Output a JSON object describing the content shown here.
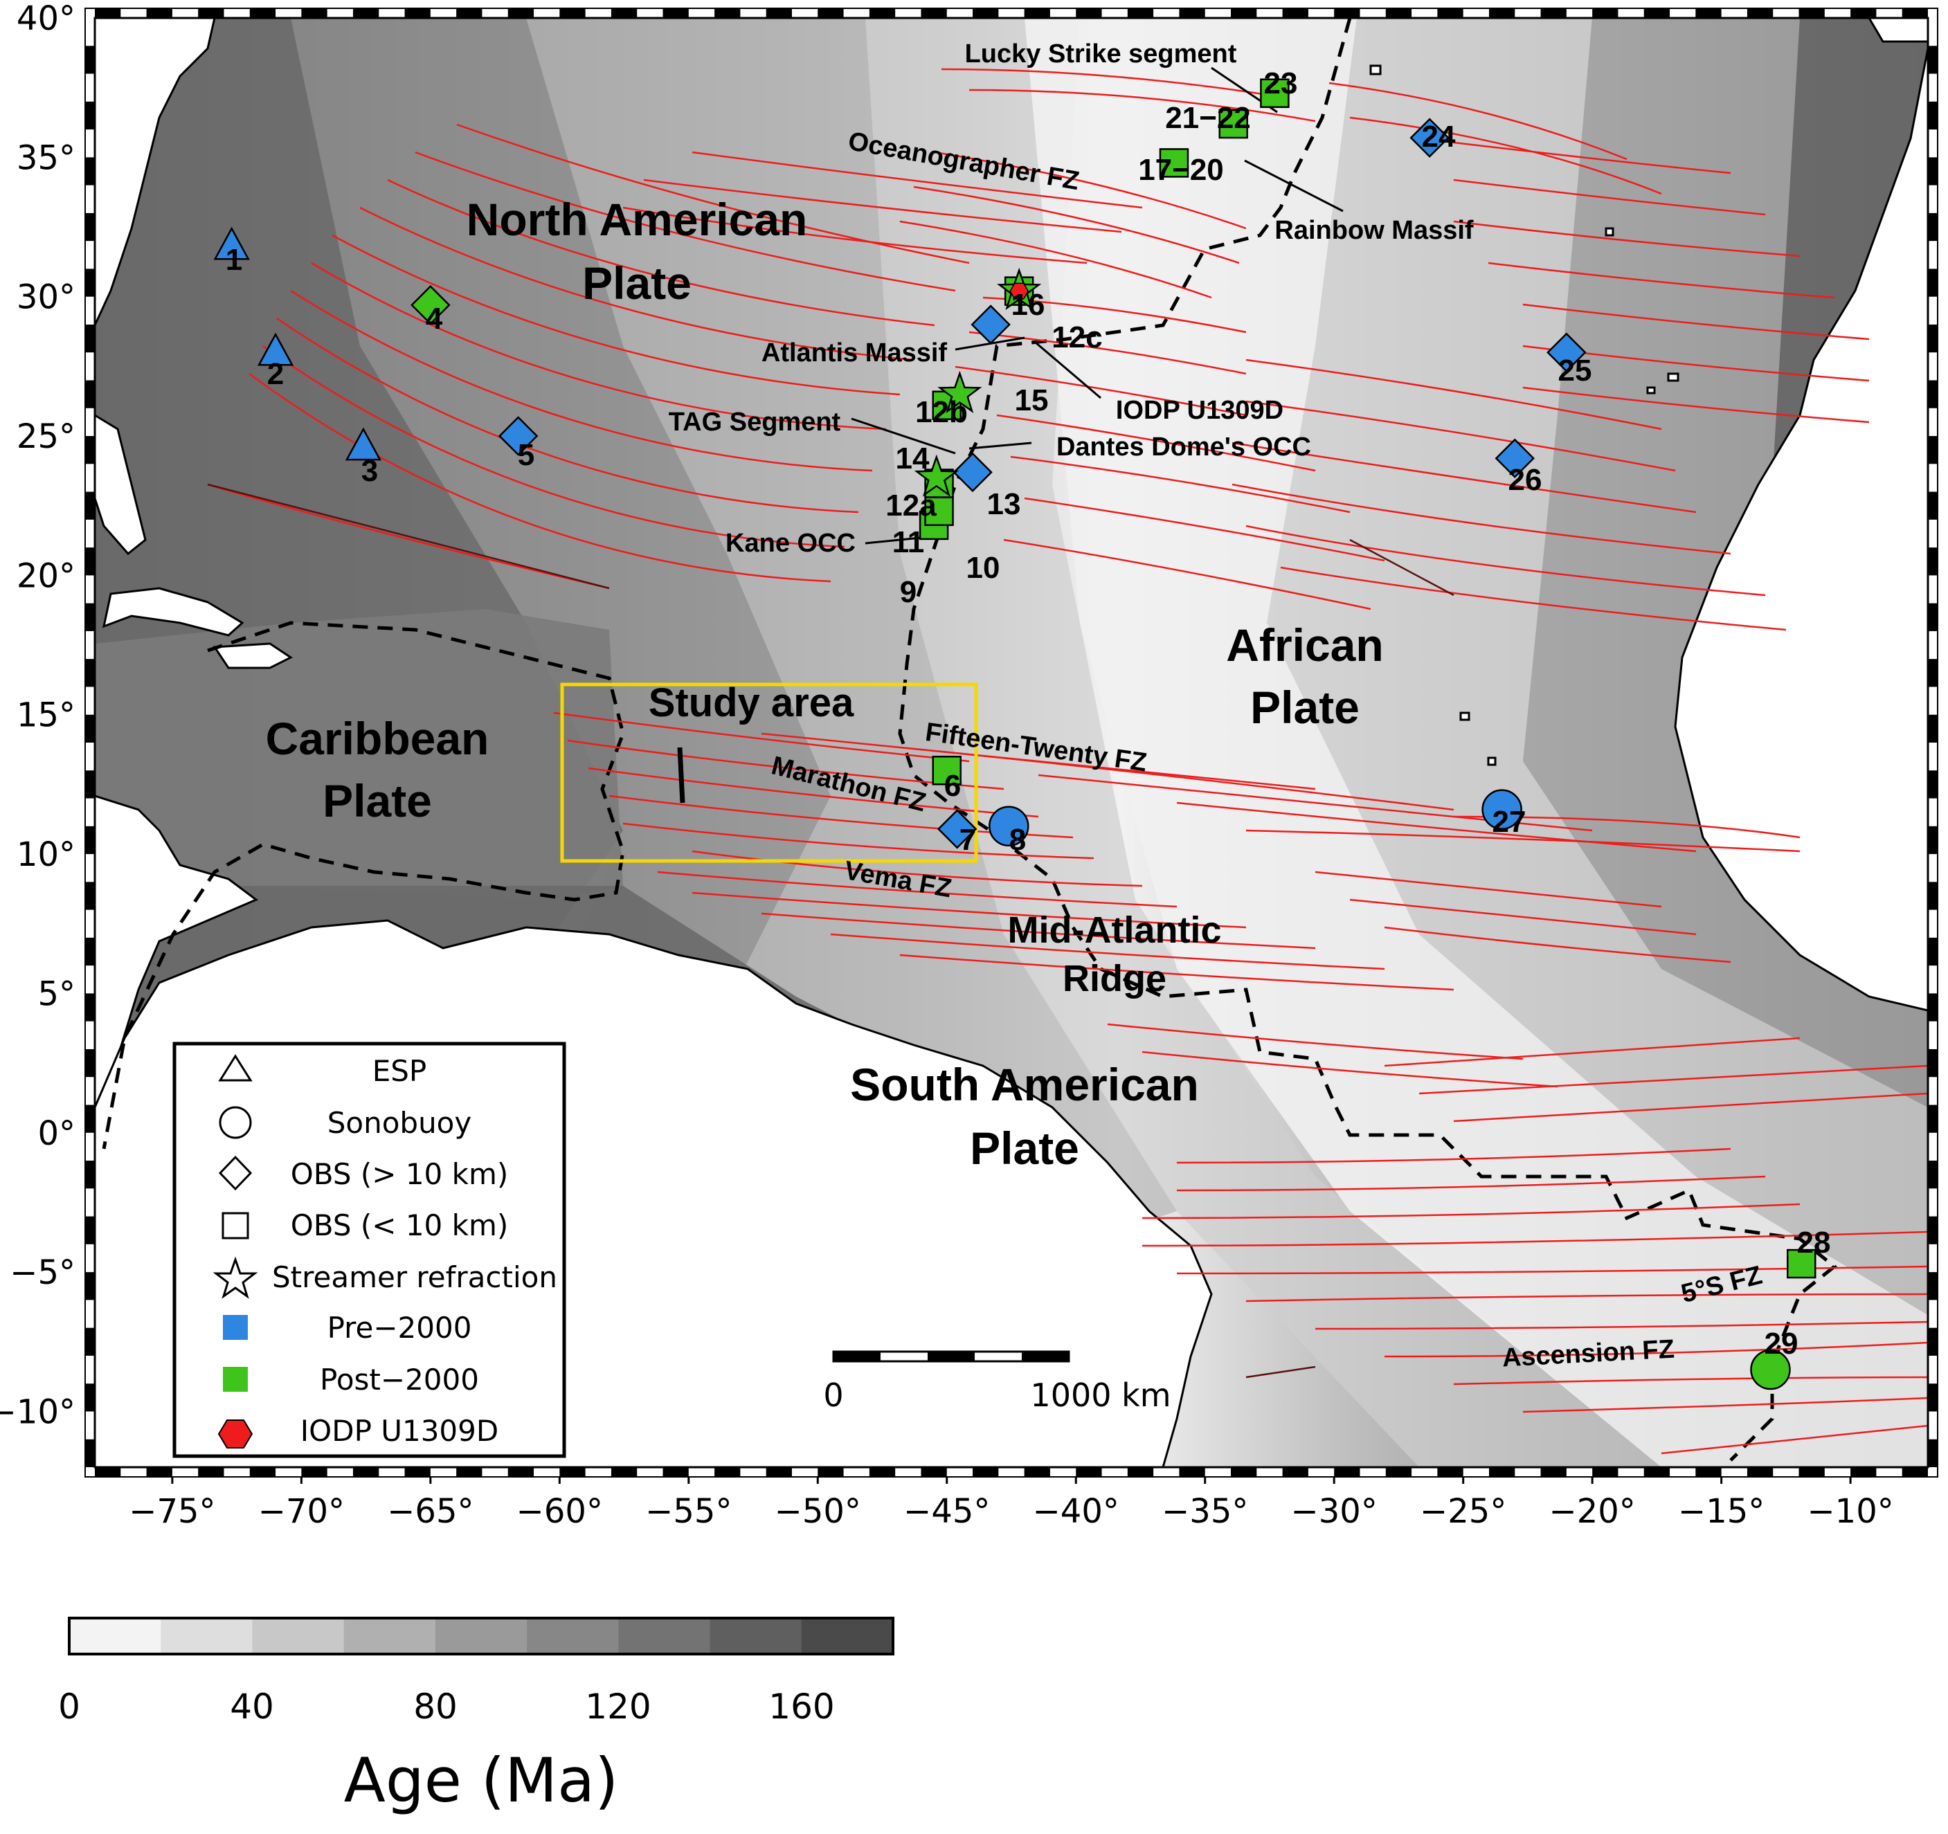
{
  "map": {
    "lon_range": [
      -78,
      -7
    ],
    "lat_range": [
      -12,
      40
    ],
    "lon_ticks": [
      -75,
      -70,
      -65,
      -60,
      -55,
      -50,
      -45,
      -40,
      -35,
      -30,
      -25,
      -20,
      -15,
      -10
    ],
    "lat_ticks": [
      -10,
      -5,
      0,
      5,
      10,
      15,
      20,
      25,
      30,
      35,
      40
    ],
    "lon_tick_labels": [
      "−75°",
      "−70°",
      "−65°",
      "−60°",
      "−55°",
      "−50°",
      "−45°",
      "−40°",
      "−35°",
      "−30°",
      "−25°",
      "−20°",
      "−15°",
      "−10°"
    ],
    "lat_tick_labels": [
      "−10°",
      "−5°",
      "0°",
      "5°",
      "10°",
      "15°",
      "20°",
      "25°",
      "30°",
      "35°",
      "40°"
    ]
  },
  "plates": {
    "north_american_l1": "North American",
    "north_american_l2": "Plate",
    "caribbean_l1": "Caribbean",
    "caribbean_l2": "Plate",
    "african_l1": "African",
    "african_l2": "Plate",
    "south_american_l1": "South American",
    "south_american_l2": "Plate",
    "mar_l1": "Mid-Atlantic",
    "mar_l2": "Ridge"
  },
  "features": {
    "study_area": "Study area",
    "lucky_strike": "Lucky Strike segment",
    "oceanographer": "Oceanographer FZ",
    "rainbow": "Rainbow Massif",
    "atlantis": "Atlantis Massif",
    "iodp": "IODP U1309D",
    "tag": "TAG Segment",
    "dantes": "Dantes Dome's OCC",
    "kane": "Kane OCC",
    "fifteen_twenty": "Fifteen-Twenty FZ",
    "marathon": "Marathon FZ",
    "vema": "Vema FZ",
    "five_s": "5°S FZ",
    "ascension": "Ascension FZ"
  },
  "sites": [
    {
      "label": "1",
      "lon": -72.7,
      "lat": 31.8,
      "symbol": "triangle",
      "color": "#2f86e0"
    },
    {
      "label": "2",
      "lon": -71.0,
      "lat": 28.0,
      "symbol": "triangle",
      "color": "#2f86e0"
    },
    {
      "label": "3",
      "lon": -67.6,
      "lat": 24.6,
      "symbol": "triangle",
      "color": "#2f86e0"
    },
    {
      "label": "4",
      "lon": -65.0,
      "lat": 29.7,
      "symbol": "diamond",
      "color": "#3fc41b"
    },
    {
      "label": "5",
      "lon": -61.6,
      "lat": 25.0,
      "symbol": "diamond",
      "color": "#2f86e0"
    },
    {
      "label": "6",
      "lon": -45.0,
      "lat": 13.0,
      "symbol": "square",
      "color": "#3fc41b"
    },
    {
      "label": "7",
      "lon": -44.6,
      "lat": 10.9,
      "symbol": "diamond",
      "color": "#2f86e0"
    },
    {
      "label": "8",
      "lon": -42.6,
      "lat": 11.0,
      "symbol": "circle",
      "color": "#2f86e0"
    },
    {
      "label": "9",
      "lon": -45.5,
      "lat": 21.8,
      "symbol": "square",
      "color": "#3fc41b"
    },
    {
      "label": "10",
      "lon": -45.3,
      "lat": 22.3,
      "symbol": "square",
      "color": "#3fc41b"
    },
    {
      "label": "11",
      "lon": -45.3,
      "lat": 23.3,
      "symbol": "square",
      "color": "#3fc41b"
    },
    {
      "label": "12a",
      "lon": -45.4,
      "lat": 23.5,
      "symbol": "star",
      "color": "#3fc41b"
    },
    {
      "label": "12b",
      "lon": -44.5,
      "lat": 26.5,
      "symbol": "star",
      "color": "#3fc41b"
    },
    {
      "label": "12c",
      "lon": -42.2,
      "lat": 30.2,
      "symbol": "star",
      "color": "#3fc41b"
    },
    {
      "label": "13",
      "lon": -44.0,
      "lat": 23.7,
      "symbol": "diamond",
      "color": "#2f86e0"
    },
    {
      "label": "14",
      "lon": -45.0,
      "lat": 26.1,
      "symbol": "square",
      "color": "#3fc41b"
    },
    {
      "label": "15",
      "lon": -43.3,
      "lat": 29.0,
      "symbol": "diamond",
      "color": "#2f86e0"
    },
    {
      "label": "16",
      "lon": -42.2,
      "lat": 30.2,
      "symbol": "square",
      "color": "#3fc41b"
    },
    {
      "label": "IODP",
      "lon": -42.2,
      "lat": 30.2,
      "symbol": "hexagon",
      "color": "#ee1c1c"
    },
    {
      "label": "17-20",
      "lon": -36.2,
      "lat": 34.8,
      "symbol": "square",
      "color": "#3fc41b"
    },
    {
      "label": "21-22",
      "lon": -33.9,
      "lat": 36.2,
      "symbol": "square",
      "color": "#3fc41b"
    },
    {
      "label": "23",
      "lon": -32.3,
      "lat": 37.3,
      "symbol": "square",
      "color": "#3fc41b"
    },
    {
      "label": "24",
      "lon": -26.3,
      "lat": 35.7,
      "symbol": "diamond",
      "color": "#2f86e0"
    },
    {
      "label": "25",
      "lon": -21.0,
      "lat": 28.0,
      "symbol": "diamond",
      "color": "#2f86e0"
    },
    {
      "label": "26",
      "lon": -23.0,
      "lat": 24.2,
      "symbol": "diamond",
      "color": "#2f86e0"
    },
    {
      "label": "27",
      "lon": -23.5,
      "lat": 11.6,
      "symbol": "circle",
      "color": "#2f86e0"
    },
    {
      "label": "28",
      "lon": -11.9,
      "lat": -4.7,
      "symbol": "square",
      "color": "#3fc41b"
    },
    {
      "label": "29",
      "lon": -13.1,
      "lat": -8.5,
      "symbol": "circle",
      "color": "#3fc41b"
    }
  ],
  "site_labels": {
    "s1": "1",
    "s2": "2",
    "s3": "3",
    "s4": "4",
    "s5": "5",
    "s6": "6",
    "s7": "7",
    "s8": "8",
    "s9": "9",
    "s10": "10",
    "s11": "11",
    "s12a": "12a",
    "s12b": "12b",
    "s12c": "12c",
    "s13": "13",
    "s14": "14",
    "s15": "15",
    "s16": "16",
    "s17": "17−20",
    "s21": "21−22",
    "s23": "23",
    "s24": "24",
    "s25": "25",
    "s26": "26",
    "s27": "27",
    "s28": "28",
    "s29": "29"
  },
  "legend": {
    "items": [
      "ESP",
      "Sonobuoy",
      "OBS (> 10 km)",
      "OBS (< 10 km)",
      "Streamer refraction",
      "Pre−2000",
      "Post−2000",
      "IODP U1309D"
    ],
    "pre_color": "#2f86e0",
    "post_color": "#3fc41b",
    "iodp_color": "#ee1c1c"
  },
  "scale_bar": {
    "start_label": "0",
    "end_label": "1000 km"
  },
  "colorbar": {
    "ticks": [
      "0",
      "40",
      "80",
      "120",
      "160"
    ],
    "title": "Age (Ma)",
    "range": [
      0,
      180
    ],
    "colors": [
      "#f3f3f3",
      "#dedede",
      "#c8c8c8",
      "#b0b0b0",
      "#9a9a9a",
      "#878787",
      "#737373",
      "#5f5f5f",
      "#4a4a4a"
    ]
  }
}
